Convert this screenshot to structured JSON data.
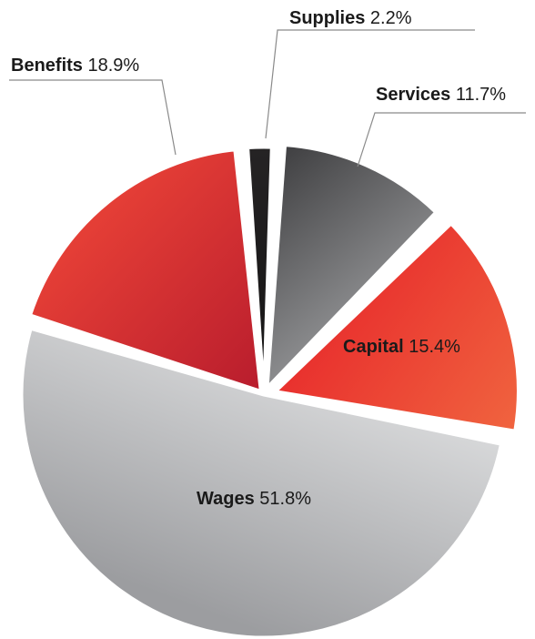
{
  "chart_data": {
    "type": "pie",
    "slices": [
      {
        "name": "Services",
        "value": 11.7,
        "label": "11.7%",
        "color": "#5a5a5c"
      },
      {
        "name": "Capital",
        "value": 15.4,
        "label": "15.4%",
        "color": "#e8312f"
      },
      {
        "name": "Wages",
        "value": 51.8,
        "label": "51.8%",
        "color": "#b3b4b6"
      },
      {
        "name": "Benefits",
        "value": 18.9,
        "label": "18.9%",
        "color": "#d9282e"
      },
      {
        "name": "Supplies",
        "value": 2.2,
        "label": "2.2%",
        "color": "#1f1d1e"
      }
    ],
    "title": "",
    "legend": "none"
  }
}
